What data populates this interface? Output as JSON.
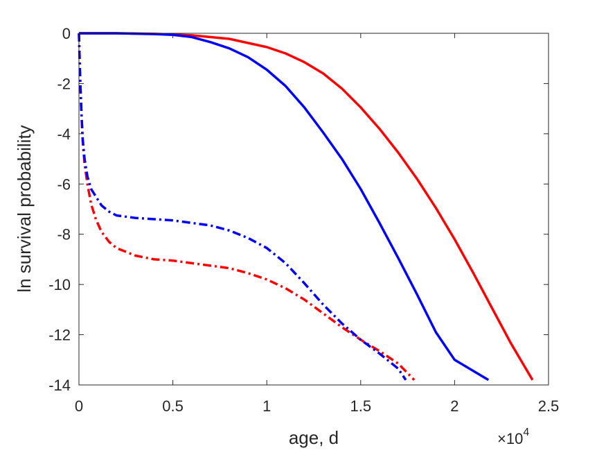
{
  "chart_data": {
    "type": "line",
    "title": "",
    "xlabel": "age, d",
    "ylabel": "ln survival probability",
    "x_exponent_label": "×10",
    "x_exponent_power": "4",
    "xlim": [
      0,
      25000
    ],
    "ylim": [
      -14,
      0
    ],
    "xticks": [
      0,
      5000,
      10000,
      15000,
      20000,
      25000
    ],
    "xtick_labels": [
      "0",
      "0.5",
      "1",
      "1.5",
      "2",
      "2.5"
    ],
    "yticks": [
      0,
      -2,
      -4,
      -6,
      -8,
      -10,
      -12,
      -14
    ],
    "ytick_labels": [
      "0",
      "-2",
      "-4",
      "-6",
      "-8",
      "-10",
      "-12",
      "-14"
    ],
    "grid": false,
    "legend": "none",
    "series": [
      {
        "color": "#ff0000",
        "style": "solid",
        "points": [
          [
            0,
            0
          ],
          [
            2000,
            0
          ],
          [
            4000,
            -0.02
          ],
          [
            6000,
            -0.08
          ],
          [
            8000,
            -0.22
          ],
          [
            10000,
            -0.55
          ],
          [
            11000,
            -0.8
          ],
          [
            12000,
            -1.15
          ],
          [
            13000,
            -1.6
          ],
          [
            14000,
            -2.2
          ],
          [
            15000,
            -2.95
          ],
          [
            16000,
            -3.8
          ],
          [
            17000,
            -4.75
          ],
          [
            18000,
            -5.8
          ],
          [
            19000,
            -6.95
          ],
          [
            20000,
            -8.2
          ],
          [
            21000,
            -9.55
          ],
          [
            22000,
            -10.95
          ],
          [
            23000,
            -12.35
          ],
          [
            24150,
            -13.8
          ]
        ]
      },
      {
        "color": "#0000ff",
        "style": "solid",
        "points": [
          [
            0,
            0
          ],
          [
            2000,
            0
          ],
          [
            4000,
            -0.03
          ],
          [
            5000,
            -0.06
          ],
          [
            6000,
            -0.15
          ],
          [
            7000,
            -0.35
          ],
          [
            8000,
            -0.6
          ],
          [
            9000,
            -0.95
          ],
          [
            10000,
            -1.45
          ],
          [
            11000,
            -2.1
          ],
          [
            12000,
            -2.95
          ],
          [
            13000,
            -3.95
          ],
          [
            14000,
            -5.0
          ],
          [
            15000,
            -6.2
          ],
          [
            16000,
            -7.55
          ],
          [
            17000,
            -8.95
          ],
          [
            18000,
            -10.4
          ],
          [
            19000,
            -11.9
          ],
          [
            20000,
            -13.0
          ],
          [
            21800,
            -13.8
          ]
        ]
      },
      {
        "color": "#ff0000",
        "style": "dashdot",
        "points": [
          [
            0,
            0
          ],
          [
            50,
            -1.5
          ],
          [
            120,
            -3.0
          ],
          [
            200,
            -4.3
          ],
          [
            300,
            -5.2
          ],
          [
            450,
            -6.0
          ],
          [
            650,
            -6.8
          ],
          [
            900,
            -7.4
          ],
          [
            1200,
            -7.9
          ],
          [
            1600,
            -8.3
          ],
          [
            2000,
            -8.55
          ],
          [
            3000,
            -8.85
          ],
          [
            4000,
            -9.0
          ],
          [
            5000,
            -9.05
          ],
          [
            6000,
            -9.15
          ],
          [
            7000,
            -9.25
          ],
          [
            8000,
            -9.35
          ],
          [
            9000,
            -9.55
          ],
          [
            10000,
            -9.8
          ],
          [
            11000,
            -10.15
          ],
          [
            12000,
            -10.6
          ],
          [
            13000,
            -11.15
          ],
          [
            14000,
            -11.7
          ],
          [
            15000,
            -12.2
          ],
          [
            16000,
            -12.65
          ],
          [
            17000,
            -13.15
          ],
          [
            17850,
            -13.8
          ]
        ]
      },
      {
        "color": "#0000ff",
        "style": "dashdot",
        "points": [
          [
            0,
            0
          ],
          [
            50,
            -1.5
          ],
          [
            120,
            -3.0
          ],
          [
            200,
            -4.2
          ],
          [
            300,
            -5.0
          ],
          [
            450,
            -5.7
          ],
          [
            650,
            -6.2
          ],
          [
            900,
            -6.5
          ],
          [
            1200,
            -6.85
          ],
          [
            1600,
            -7.1
          ],
          [
            2000,
            -7.25
          ],
          [
            3000,
            -7.35
          ],
          [
            4000,
            -7.4
          ],
          [
            5000,
            -7.45
          ],
          [
            6000,
            -7.55
          ],
          [
            7000,
            -7.65
          ],
          [
            8000,
            -7.85
          ],
          [
            9000,
            -8.15
          ],
          [
            10000,
            -8.55
          ],
          [
            11000,
            -9.15
          ],
          [
            12000,
            -9.95
          ],
          [
            13000,
            -10.8
          ],
          [
            14000,
            -11.55
          ],
          [
            15000,
            -12.2
          ],
          [
            16000,
            -12.75
          ],
          [
            17000,
            -13.35
          ],
          [
            17400,
            -13.8
          ]
        ]
      }
    ]
  }
}
